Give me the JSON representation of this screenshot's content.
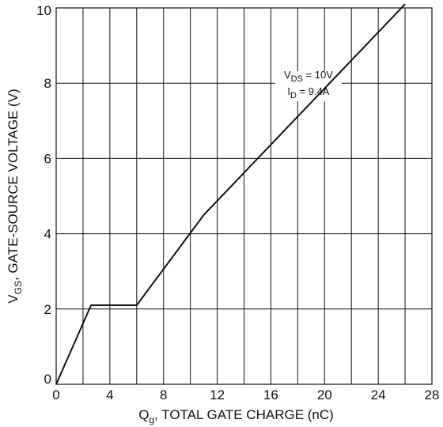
{
  "chart_data": {
    "type": "line",
    "xlabel": {
      "prefix": "Q",
      "sub": "g",
      "suffix": ", TOTAL GATE CHARGE (nC)"
    },
    "ylabel": {
      "prefix": "V",
      "sub": "GS",
      "suffix": ", GATE-SOURCE VOLTAGE (V)"
    },
    "xlim": [
      0,
      28
    ],
    "ylim": [
      0,
      10
    ],
    "x_ticks": [
      "0",
      "4",
      "8",
      "12",
      "16",
      "20",
      "24",
      "28"
    ],
    "y_ticks": [
      "0",
      "2",
      "4",
      "6",
      "8",
      "10"
    ],
    "grid": {
      "x_step": 2,
      "y_step": 2
    },
    "annotation": {
      "line1": {
        "prefix": "V",
        "sub": "DS",
        "suffix": " = 10V"
      },
      "line2": {
        "prefix": "I",
        "sub": "D",
        "suffix": " = 9.4A"
      }
    },
    "series": [
      {
        "x": [
          0,
          2.6,
          6.0,
          11.0,
          26.0
        ],
        "y": [
          0,
          2.1,
          2.1,
          4.5,
          10.1
        ]
      }
    ]
  }
}
